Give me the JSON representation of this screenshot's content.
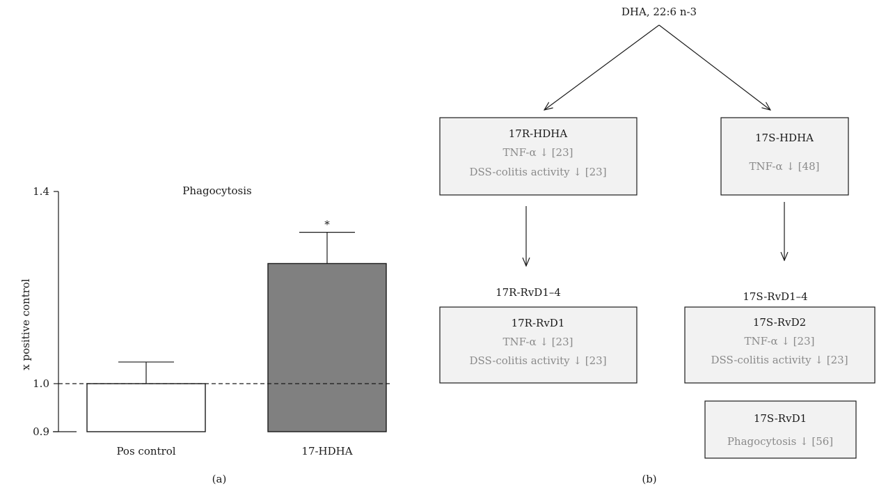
{
  "panel_a": {
    "caption": "(a)"
  },
  "panel_b": {
    "caption": "(b)",
    "root": "DHA, 22:6 n-3",
    "box_17r_hdha": {
      "title": "17R-HDHA",
      "line1": "TNF-α ↓ [23]",
      "line2": "DSS-colitis activity ↓ [23]"
    },
    "box_17s_hdha": {
      "title": "17S-HDHA",
      "line1": "TNF-α ↓ [48]"
    },
    "label_17r_rvd": "17R-RvD1–4",
    "label_17s_rvd": "17S-RvD1–4",
    "box_17r_rvd1": {
      "title": "17R-RvD1",
      "line1": "TNF-α ↓ [23]",
      "line2": "DSS-colitis activity ↓ [23]"
    },
    "box_17s_rvd2": {
      "title": "17S-RvD2",
      "line1": "TNF-α ↓ [23]",
      "line2": "DSS-colitis activity ↓ [23]"
    },
    "box_17s_rvd1": {
      "title": "17S-RvD1",
      "line1": "Phagocytosis ↓ [56]"
    }
  },
  "chart_data": {
    "type": "bar",
    "title": "Phagocytosis",
    "xlabel": "",
    "ylabel": "x positive control",
    "categories": [
      "Pos control",
      "17-HDHA"
    ],
    "values": [
      1.0,
      1.25
    ],
    "errors": [
      0.045,
      0.065
    ],
    "significance": [
      "",
      "*"
    ],
    "bar_colors": [
      "#ffffff",
      "#808080"
    ],
    "ylim": [
      0.9,
      1.4
    ],
    "yticks": [
      0.9,
      1.0,
      1.4
    ],
    "ytick_labels": [
      "0.9",
      "1.0",
      "1.4"
    ],
    "reference_line": 1.0,
    "grid": false
  }
}
